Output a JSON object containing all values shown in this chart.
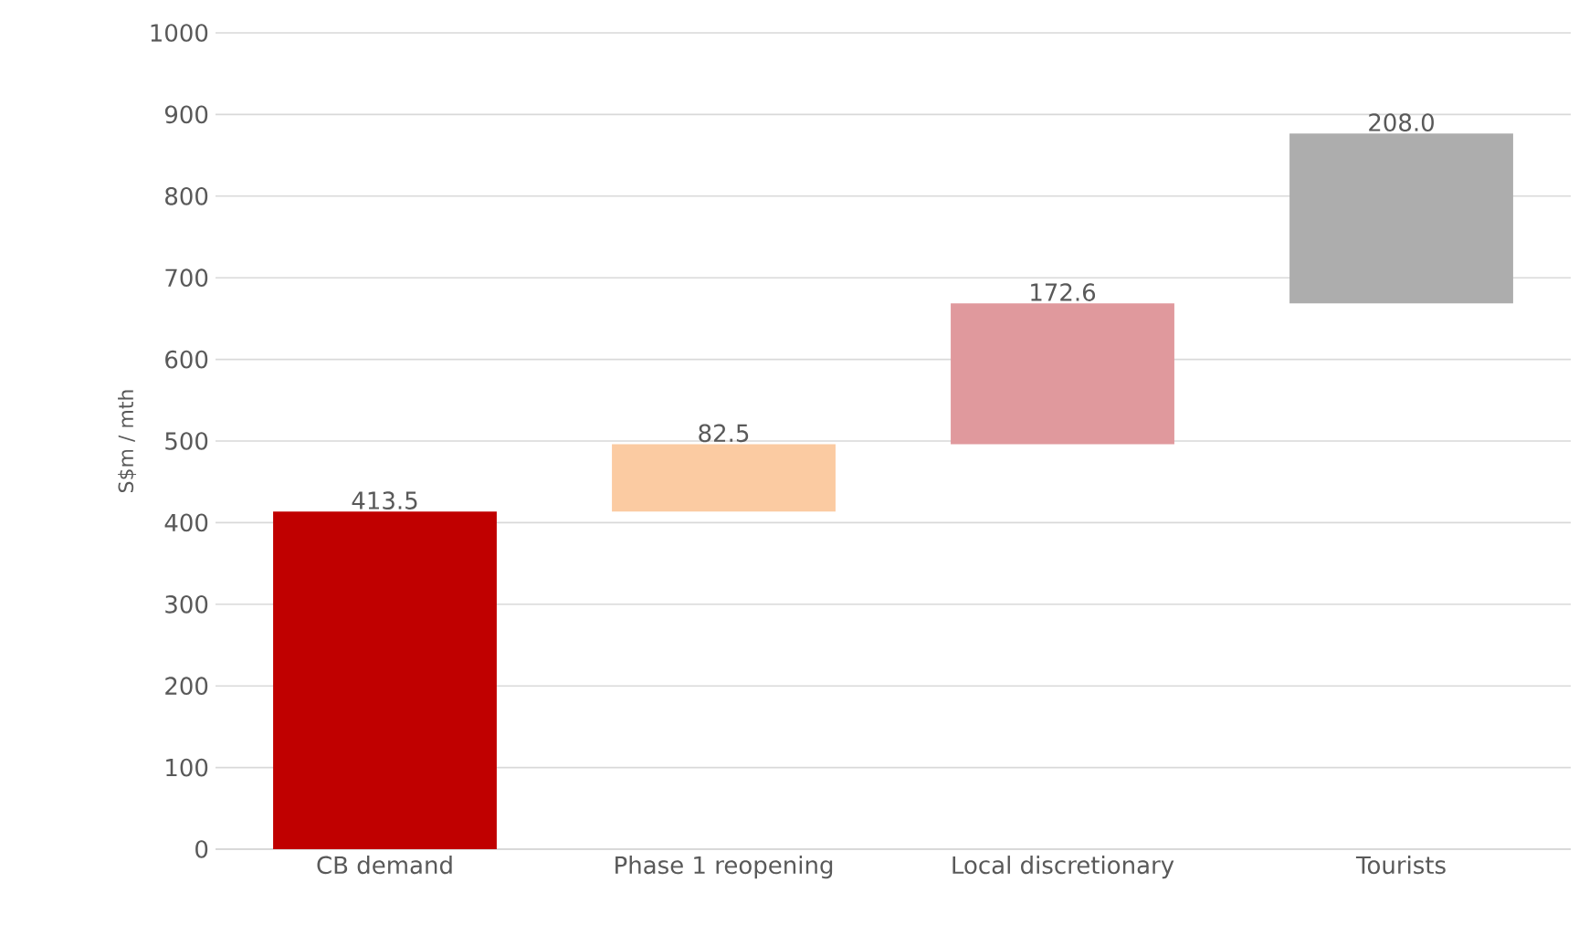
{
  "chart_data": {
    "type": "bar",
    "ylabel": "S$m / mth",
    "categories": [
      "CB demand",
      "Phase 1 reopening",
      "Local discretionary",
      "Tourists"
    ],
    "values": [
      413.5,
      82.5,
      172.6,
      208.0
    ],
    "base": [
      0,
      413.5,
      496.0,
      668.6
    ],
    "colors": [
      "#c00000",
      "#fbcba2",
      "#e0999d",
      "#adadad"
    ],
    "value_labels": [
      "413.5",
      "82.5",
      "172.6",
      "208.0"
    ],
    "ylim": [
      0,
      1000
    ],
    "yticks": [
      0,
      100,
      200,
      300,
      400,
      500,
      600,
      700,
      800,
      900,
      1000
    ],
    "grid": "y"
  }
}
